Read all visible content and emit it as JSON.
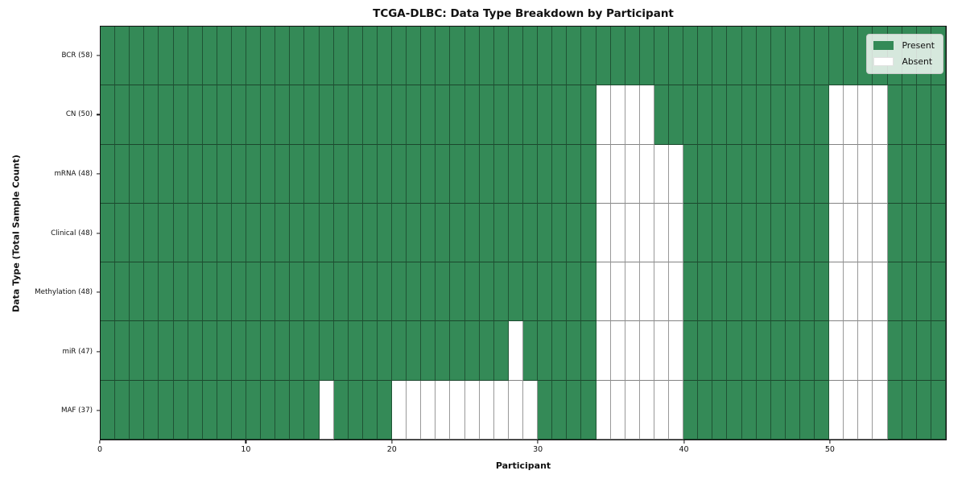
{
  "chart_data": {
    "type": "heatmap",
    "title": "TCGA-DLBC: Data Type Breakdown by Participant",
    "xlabel": "Participant",
    "ylabel": "Data Type (Total Sample Count)",
    "n_participants": 58,
    "x_ticks": [
      0,
      10,
      20,
      30,
      40,
      50
    ],
    "x_range": [
      0,
      58
    ],
    "legend": [
      {
        "label": "Present",
        "state": "present"
      },
      {
        "label": "Absent",
        "state": "absent"
      }
    ],
    "layout_hints": {
      "legend_position": "upper-right",
      "grid": true
    },
    "rows": [
      {
        "label": "BCR (58)",
        "data_type": "BCR",
        "total_samples": 58,
        "absent_participants": []
      },
      {
        "label": "CN (50)",
        "data_type": "CN",
        "total_samples": 50,
        "absent_participants": [
          34,
          35,
          36,
          37,
          50,
          51,
          52,
          53
        ]
      },
      {
        "label": "mRNA (48)",
        "data_type": "mRNA",
        "total_samples": 48,
        "absent_participants": [
          34,
          35,
          36,
          37,
          38,
          39,
          50,
          51,
          52,
          53
        ]
      },
      {
        "label": "Clinical (48)",
        "data_type": "Clinical",
        "total_samples": 48,
        "absent_participants": [
          34,
          35,
          36,
          37,
          38,
          39,
          50,
          51,
          52,
          53
        ]
      },
      {
        "label": "Methylation (48)",
        "data_type": "Methylation",
        "total_samples": 48,
        "absent_participants": [
          34,
          35,
          36,
          37,
          38,
          39,
          50,
          51,
          52,
          53
        ]
      },
      {
        "label": "miR (47)",
        "data_type": "miR",
        "total_samples": 47,
        "absent_participants": [
          28,
          34,
          35,
          36,
          37,
          38,
          39,
          50,
          51,
          52,
          53
        ]
      },
      {
        "label": "MAF (37)",
        "data_type": "MAF",
        "total_samples": 37,
        "absent_participants": [
          15,
          20,
          21,
          22,
          23,
          24,
          25,
          26,
          27,
          28,
          29,
          34,
          35,
          36,
          37,
          38,
          39,
          50,
          51,
          52,
          53
        ]
      }
    ]
  },
  "colors": {
    "present": "#348a57",
    "absent": "#ffffff",
    "grid_line": "rgba(0,0,0,0.40)",
    "grid_line_horizontal": "rgba(0,0,0,0.48)",
    "frame": "#111111",
    "legend_border": "#cccccc"
  }
}
